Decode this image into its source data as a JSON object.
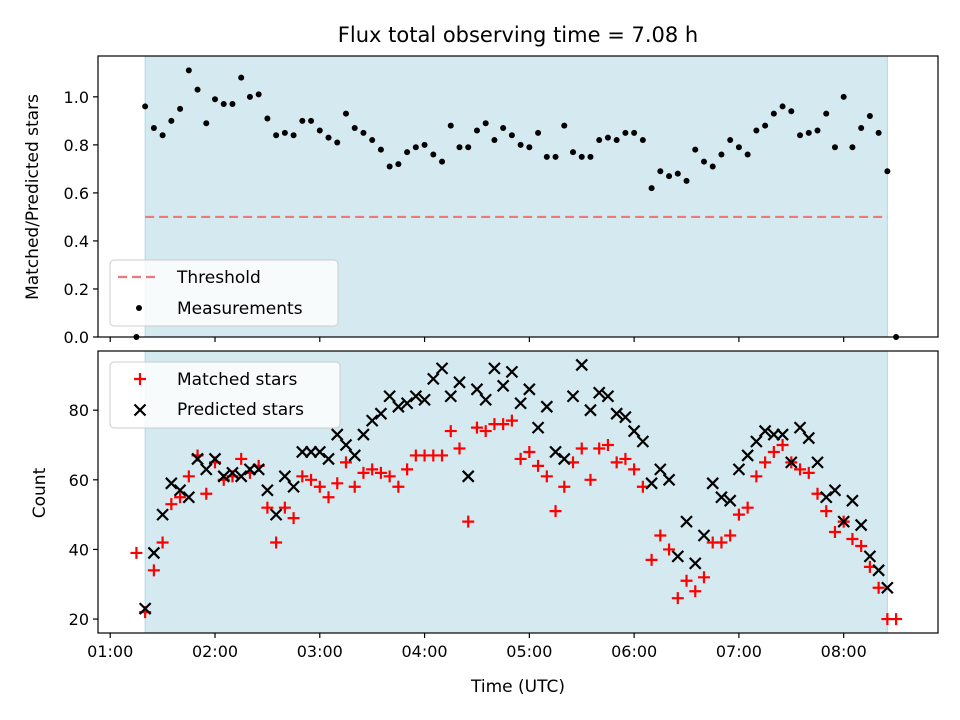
{
  "colors": {
    "band": "#d4eaf0",
    "band_edge": "#add8e6",
    "threshold": "#f07878",
    "measure": "#000000",
    "matched": "#ff0000",
    "predicted": "#000000",
    "axis": "#000000"
  },
  "chart_data": {
    "title": "Flux total observing time = 7.08 h",
    "xlabel": "Time (UTC)",
    "x_ticks": [
      "01:00",
      "02:00",
      "03:00",
      "04:00",
      "05:00",
      "06:00",
      "07:00",
      "08:00"
    ],
    "xlim": [
      "00:53",
      "08:54"
    ],
    "observing_window": [
      "01:20",
      "08:25"
    ],
    "panels": [
      {
        "type": "scatter",
        "ylabel": "Matched/Predicted stars",
        "ylim": [
          0,
          1.17
        ],
        "y_ticks": [
          "0.0",
          "0.2",
          "0.4",
          "0.6",
          "0.8",
          "1.0"
        ],
        "legend": {
          "position": "lower-left",
          "entries": [
            "Threshold",
            "Measurements"
          ]
        },
        "threshold": {
          "name": "Threshold",
          "value": 0.5,
          "x_range": [
            "01:20",
            "08:25"
          ]
        },
        "series": [
          {
            "name": "Measurements",
            "x": [
              "01:15",
              "01:20",
              "01:25",
              "01:30",
              "01:35",
              "01:40",
              "01:45",
              "01:50",
              "01:55",
              "02:00",
              "02:05",
              "02:10",
              "02:15",
              "02:20",
              "02:25",
              "02:30",
              "02:35",
              "02:40",
              "02:45",
              "02:50",
              "02:55",
              "03:00",
              "03:05",
              "03:10",
              "03:15",
              "03:20",
              "03:25",
              "03:30",
              "03:35",
              "03:40",
              "03:45",
              "03:50",
              "03:55",
              "04:00",
              "04:05",
              "04:10",
              "04:15",
              "04:20",
              "04:25",
              "04:30",
              "04:35",
              "04:40",
              "04:45",
              "04:50",
              "04:55",
              "05:00",
              "05:05",
              "05:10",
              "05:15",
              "05:20",
              "05:25",
              "05:30",
              "05:35",
              "05:40",
              "05:45",
              "05:50",
              "05:55",
              "06:00",
              "06:05",
              "06:10",
              "06:15",
              "06:20",
              "06:25",
              "06:30",
              "06:35",
              "06:40",
              "06:45",
              "06:50",
              "06:55",
              "07:00",
              "07:05",
              "07:10",
              "07:15",
              "07:20",
              "07:25",
              "07:30",
              "07:35",
              "07:40",
              "07:45",
              "07:50",
              "07:55",
              "08:00",
              "08:05",
              "08:10",
              "08:15",
              "08:20",
              "08:25",
              "08:30"
            ],
            "y": [
              0.0,
              0.96,
              0.87,
              0.84,
              0.9,
              0.95,
              1.11,
              1.03,
              0.89,
              0.99,
              0.97,
              0.97,
              1.08,
              1.0,
              1.01,
              0.91,
              0.84,
              0.85,
              0.84,
              0.9,
              0.9,
              0.86,
              0.83,
              0.81,
              0.93,
              0.87,
              0.85,
              0.82,
              0.78,
              0.71,
              0.72,
              0.77,
              0.79,
              0.8,
              0.76,
              0.73,
              0.88,
              0.79,
              0.79,
              0.86,
              0.89,
              0.82,
              0.87,
              0.84,
              0.8,
              0.79,
              0.85,
              0.75,
              0.75,
              0.88,
              0.77,
              0.75,
              0.75,
              0.82,
              0.83,
              0.82,
              0.85,
              0.85,
              0.82,
              0.62,
              0.69,
              0.67,
              0.68,
              0.65,
              0.78,
              0.73,
              0.71,
              0.76,
              0.82,
              0.79,
              0.76,
              0.86,
              0.88,
              0.93,
              0.96,
              0.94,
              0.84,
              0.85,
              0.86,
              0.93,
              0.79,
              1.0,
              0.79,
              0.87,
              0.92,
              0.85,
              0.69,
              0.0
            ]
          }
        ]
      },
      {
        "type": "scatter",
        "ylabel": "Count",
        "ylim": [
          16,
          97
        ],
        "y_ticks": [
          "20",
          "40",
          "60",
          "80"
        ],
        "legend": {
          "position": "upper-left",
          "entries": [
            "Matched stars",
            "Predicted stars"
          ]
        },
        "series": [
          {
            "name": "Matched stars",
            "marker": "+",
            "x": [
              "01:15",
              "01:20",
              "01:25",
              "01:30",
              "01:35",
              "01:40",
              "01:45",
              "01:50",
              "01:55",
              "02:00",
              "02:05",
              "02:10",
              "02:15",
              "02:20",
              "02:25",
              "02:30",
              "02:35",
              "02:40",
              "02:45",
              "02:50",
              "02:55",
              "03:00",
              "03:05",
              "03:10",
              "03:15",
              "03:20",
              "03:25",
              "03:30",
              "03:35",
              "03:40",
              "03:45",
              "03:50",
              "03:55",
              "04:00",
              "04:05",
              "04:10",
              "04:15",
              "04:20",
              "04:25",
              "04:30",
              "04:35",
              "04:40",
              "04:45",
              "04:50",
              "04:55",
              "05:00",
              "05:05",
              "05:10",
              "05:15",
              "05:20",
              "05:25",
              "05:30",
              "05:35",
              "05:40",
              "05:45",
              "05:50",
              "05:55",
              "06:00",
              "06:05",
              "06:10",
              "06:15",
              "06:20",
              "06:25",
              "06:30",
              "06:35",
              "06:40",
              "06:45",
              "06:50",
              "06:55",
              "07:00",
              "07:05",
              "07:10",
              "07:15",
              "07:20",
              "07:25",
              "07:30",
              "07:35",
              "07:40",
              "07:45",
              "07:50",
              "07:55",
              "08:00",
              "08:05",
              "08:10",
              "08:15",
              "08:20",
              "08:25",
              "08:30"
            ],
            "y": [
              39,
              22,
              34,
              42,
              53,
              55,
              61,
              67,
              56,
              65,
              60,
              61,
              66,
              62,
              64,
              52,
              42,
              52,
              49,
              61,
              60,
              58,
              55,
              59,
              65,
              58,
              62,
              63,
              62,
              61,
              58,
              63,
              67,
              67,
              67,
              67,
              74,
              69,
              48,
              75,
              74,
              76,
              76,
              77,
              66,
              68,
              64,
              61,
              51,
              58,
              65,
              69,
              60,
              69,
              70,
              65,
              66,
              63,
              58,
              37,
              44,
              40,
              26,
              31,
              28,
              32,
              42,
              42,
              44,
              50,
              52,
              61,
              65,
              68,
              70,
              65,
              63,
              62,
              56,
              51,
              45,
              48,
              43,
              41,
              35,
              29,
              20,
              20
            ]
          },
          {
            "name": "Predicted stars",
            "marker": "x",
            "x": [
              "01:20",
              "01:25",
              "01:30",
              "01:35",
              "01:40",
              "01:45",
              "01:50",
              "01:55",
              "02:00",
              "02:05",
              "02:10",
              "02:15",
              "02:20",
              "02:25",
              "02:30",
              "02:35",
              "02:40",
              "02:45",
              "02:50",
              "02:55",
              "03:00",
              "03:05",
              "03:10",
              "03:15",
              "03:20",
              "03:25",
              "03:30",
              "03:35",
              "03:40",
              "03:45",
              "03:50",
              "03:55",
              "04:00",
              "04:05",
              "04:10",
              "04:15",
              "04:20",
              "04:25",
              "04:30",
              "04:35",
              "04:40",
              "04:45",
              "04:50",
              "04:55",
              "05:00",
              "05:05",
              "05:10",
              "05:15",
              "05:20",
              "05:25",
              "05:30",
              "05:35",
              "05:40",
              "05:45",
              "05:50",
              "05:55",
              "06:00",
              "06:05",
              "06:10",
              "06:15",
              "06:20",
              "06:25",
              "06:30",
              "06:35",
              "06:40",
              "06:45",
              "06:50",
              "06:55",
              "07:00",
              "07:05",
              "07:10",
              "07:15",
              "07:20",
              "07:25",
              "07:30",
              "07:35",
              "07:40",
              "07:45",
              "07:50",
              "07:55",
              "08:00",
              "08:05",
              "08:10",
              "08:15",
              "08:20",
              "08:25"
            ],
            "y": [
              23,
              39,
              50,
              59,
              57,
              55,
              66,
              63,
              66,
              61,
              62,
              61,
              63,
              63,
              57,
              50,
              61,
              58,
              68,
              68,
              68,
              66,
              73,
              70,
              67,
              73,
              77,
              79,
              84,
              81,
              82,
              84,
              83,
              89,
              92,
              84,
              88,
              61,
              86,
              83,
              92,
              87,
              91,
              82,
              86,
              75,
              81,
              68,
              66,
              84,
              93,
              80,
              85,
              84,
              79,
              78,
              74,
              71,
              59,
              63,
              60,
              38,
              48,
              36,
              44,
              59,
              55,
              54,
              63,
              67,
              71,
              74,
              73,
              73,
              65,
              75,
              72,
              65,
              55,
              57,
              48,
              54,
              47,
              38,
              34,
              29
            ]
          }
        ]
      }
    ]
  }
}
